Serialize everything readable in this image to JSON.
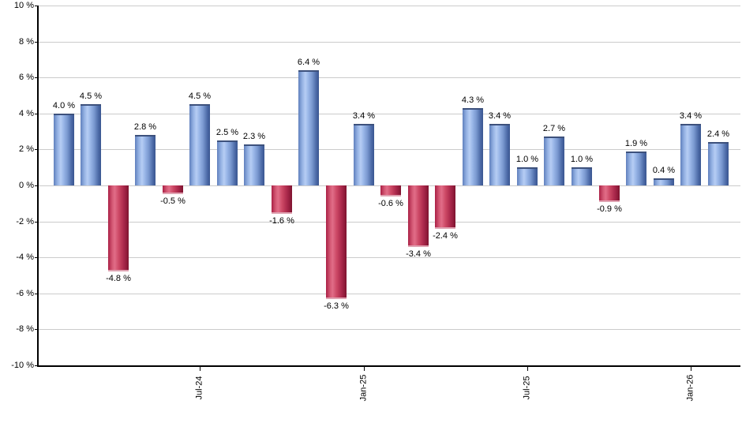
{
  "chart_data": {
    "type": "bar",
    "title": "",
    "xlabel": "",
    "ylabel": "",
    "values": [
      4.0,
      4.5,
      -4.8,
      2.8,
      -0.5,
      4.5,
      2.5,
      2.3,
      -1.6,
      6.4,
      -6.3,
      3.4,
      -0.6,
      -3.4,
      -2.4,
      4.3,
      3.4,
      1.0,
      2.7,
      1.0,
      -0.9,
      1.9,
      0.4,
      3.4,
      2.4
    ],
    "value_labels": [
      "4.0 %",
      "4.5 %",
      "-4.8 %",
      "2.8 %",
      "-0.5 %",
      "4.5 %",
      "2.5 %",
      "2.3 %",
      "-1.6 %",
      "6.4 %",
      "-6.3 %",
      "3.4 %",
      "-0.6 %",
      "-3.4 %",
      "-2.4 %",
      "4.3 %",
      "3.4 %",
      "1.0 %",
      "2.7 %",
      "1.0 %",
      "-0.9 %",
      "1.9 %",
      "0.4 %",
      "3.4 %",
      "2.4 %"
    ],
    "bar_count": 25,
    "x_ticks": [
      {
        "bar_index": 5,
        "label": "Jul-24"
      },
      {
        "bar_index": 11,
        "label": "Jan-25"
      },
      {
        "bar_index": 17,
        "label": "Jul-25"
      },
      {
        "bar_index": 23,
        "label": "Jan-26"
      }
    ],
    "y_axis": {
      "min": -10,
      "max": 10,
      "step": 2,
      "tick_labels": [
        "10 %",
        "8 %",
        "6 %",
        "4 %",
        "2 %",
        "0 %",
        "-2 %",
        "-4 %",
        "-6 %",
        "-8 %",
        "-10 %"
      ]
    },
    "grid": true,
    "legend": "none",
    "colors": {
      "positive_bar": "#9ab7e8",
      "positive_bar_dark_edge": "#3a5691",
      "positive_bar_highlight": "#b6cdf4",
      "negative_bar": "#cc4865",
      "negative_bar_dark_edge": "#7f1330",
      "negative_bar_highlight": "#e16d88",
      "gridline": "#cbcbcb",
      "axis": "#000000",
      "label_text": "#000000",
      "background": "#ffffff"
    }
  }
}
